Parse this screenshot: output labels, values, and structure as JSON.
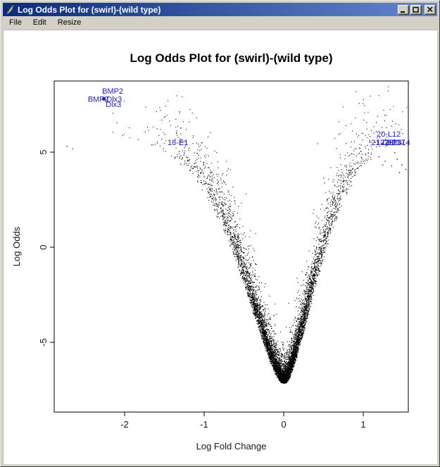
{
  "window": {
    "title": "Log Odds Plot for (swirl)-(wild type)",
    "icon": "feather-icon",
    "controls": {
      "minimize": "minimize",
      "maximize": "maximize",
      "close": "close"
    }
  },
  "menu": {
    "items": [
      "File",
      "Edit",
      "Resize"
    ]
  },
  "chart_data": {
    "type": "scatter",
    "title": "Log Odds Plot for (swirl)-(wild type)",
    "xlabel": "Log Fold Change",
    "ylabel": "Log Odds",
    "xlim": [
      -2.89,
      1.57
    ],
    "ylim": [
      -8.7,
      8.7
    ],
    "x_ticks": [
      -2,
      -1,
      0,
      1
    ],
    "y_ticks": [
      5,
      0,
      -5
    ],
    "grid": false,
    "background": "#ffffff",
    "point_color": "#000000",
    "label_color": "#2222cc",
    "description": "Volcano-style plot of log odds (B statistic) versus log fold change (M) for thousands of microarray spots from the swirl vs wild type zebrafish experiment; dense V-shaped funnel with vertex near (0, -7.1), sparse points fanning out to the sides, and top differentially-expressed genes labelled in blue.",
    "labeled_points": [
      {
        "label": "BMP2",
        "x": -2.15,
        "y": 8.2
      },
      {
        "label": "BMP2",
        "x": -2.33,
        "y": 7.78
      },
      {
        "label": "Dlx3",
        "x": -2.13,
        "y": 7.78
      },
      {
        "label": "Dlx3",
        "x": -2.14,
        "y": 7.5
      },
      {
        "label": "18-E1",
        "x": -1.33,
        "y": 5.5
      },
      {
        "label": "20-L12",
        "x": 1.32,
        "y": 5.95
      },
      {
        "label": "21-C12",
        "x": 1.26,
        "y": 5.5
      },
      {
        "label": "17-E17",
        "x": 1.32,
        "y": 5.5
      },
      {
        "label": "27-E17",
        "x": 1.37,
        "y": 5.5
      },
      {
        "label": "25-D14",
        "x": 1.43,
        "y": 5.5
      }
    ],
    "marked_points": [
      {
        "x": -2.26,
        "y": 7.8,
        "r": 2.6
      },
      {
        "x": 1.39,
        "y": 5.62,
        "r": 1.4
      },
      {
        "x": 1.47,
        "y": 5.45,
        "r": 1.4
      },
      {
        "x": 1.3,
        "y": 5.38,
        "r": 1.3
      }
    ],
    "extra_points": [
      [
        -2.73,
        5.33
      ],
      [
        -2.66,
        5.2
      ],
      [
        -1.32,
        5.05
      ],
      [
        -1.26,
        4.87
      ],
      [
        -1.37,
        4.75
      ],
      [
        -1.2,
        4.57
      ],
      [
        -1.12,
        4.25
      ],
      [
        -1.3,
        4.4
      ],
      [
        -1.05,
        3.9
      ],
      [
        1.19,
        4.78
      ],
      [
        1.27,
        4.55
      ],
      [
        1.35,
        4.3
      ],
      [
        1.42,
        4.65
      ],
      [
        1.48,
        4.36
      ],
      [
        1.53,
        4.12
      ],
      [
        1.39,
        5.0
      ],
      [
        1.24,
        4.35
      ],
      [
        1.45,
        3.95
      ]
    ],
    "point_cloud": {
      "seed": 42,
      "n": 7000,
      "m_mean": 0.28,
      "p_left": 0.52,
      "left_stretch": 1.2,
      "right_stretch": 0.95,
      "env_base": -7.15,
      "env_span": 13,
      "env_scale": 0.62,
      "env_power": 1.5,
      "noise": 1.15,
      "x_jitter": 0.05,
      "clip": {
        "x": [
          -2.86,
          1.55
        ],
        "y": [
          -7.2,
          8.55
        ]
      }
    }
  }
}
